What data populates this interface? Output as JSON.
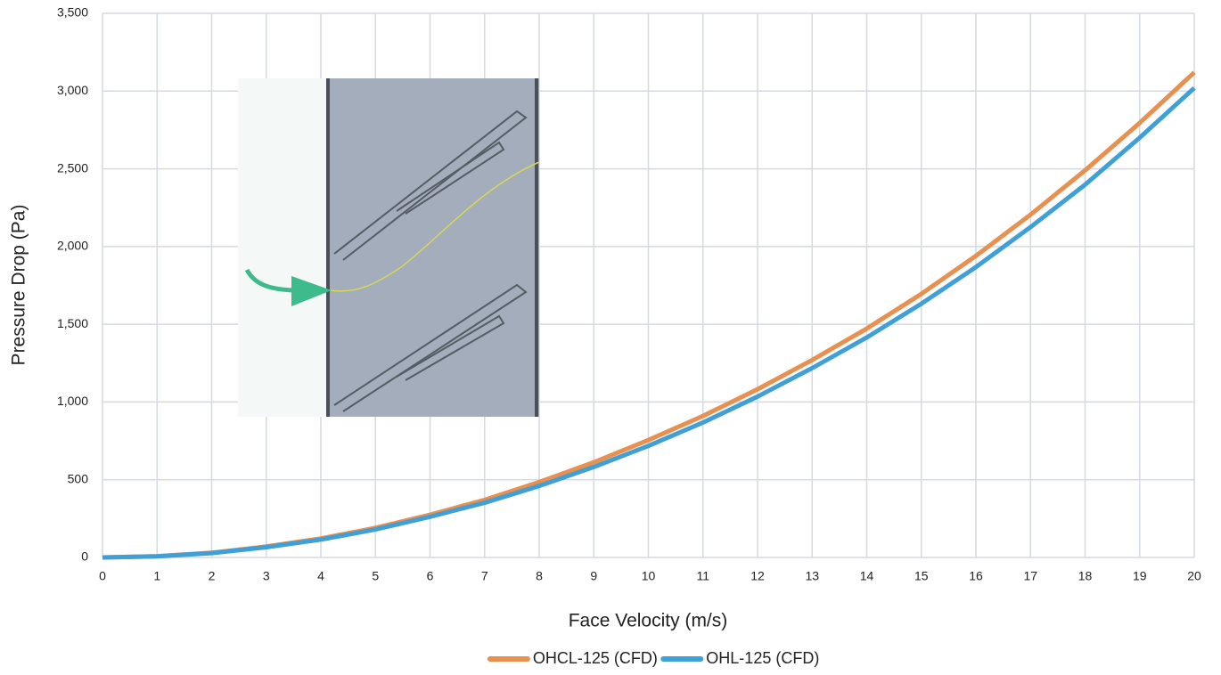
{
  "chart_data": {
    "type": "line",
    "x_label": "Face Velocity (m/s)",
    "y_label": "Pressure Drop (Pa)",
    "x": [
      0,
      1,
      2,
      3,
      4,
      5,
      6,
      7,
      8,
      9,
      10,
      11,
      12,
      13,
      14,
      15,
      16,
      17,
      18,
      19,
      20
    ],
    "series": [
      {
        "name": "OHCL-125 (CFD)",
        "color": "#e8904f",
        "values": [
          0,
          8,
          30,
          70,
          122,
          190,
          275,
          370,
          485,
          612,
          755,
          910,
          1082,
          1270,
          1472,
          1695,
          1940,
          2205,
          2490,
          2795,
          3120
        ]
      },
      {
        "name": "OHL-125 (CFD)",
        "color": "#3fa0d8",
        "values": [
          0,
          7,
          28,
          66,
          115,
          180,
          262,
          352,
          460,
          582,
          718,
          868,
          1035,
          1218,
          1415,
          1632,
          1868,
          2125,
          2398,
          2700,
          3020
        ]
      }
    ],
    "xlim": [
      0,
      20
    ],
    "xticks": [
      0,
      1,
      2,
      3,
      4,
      5,
      6,
      7,
      8,
      9,
      10,
      11,
      12,
      13,
      14,
      15,
      16,
      17,
      18,
      19,
      20
    ],
    "ylim": [
      0,
      3500
    ],
    "yticks": [
      0,
      500,
      {
        "value": 1000,
        "label": "1,000"
      },
      {
        "value": 1500,
        "label": "1,500"
      },
      {
        "value": 2000,
        "label": "2,000"
      },
      {
        "value": 2500,
        "label": "2,500"
      },
      {
        "value": 3000,
        "label": "3,000"
      },
      {
        "value": 3500,
        "label": "3,500"
      }
    ],
    "grid": true,
    "legend": "bottom"
  }
}
